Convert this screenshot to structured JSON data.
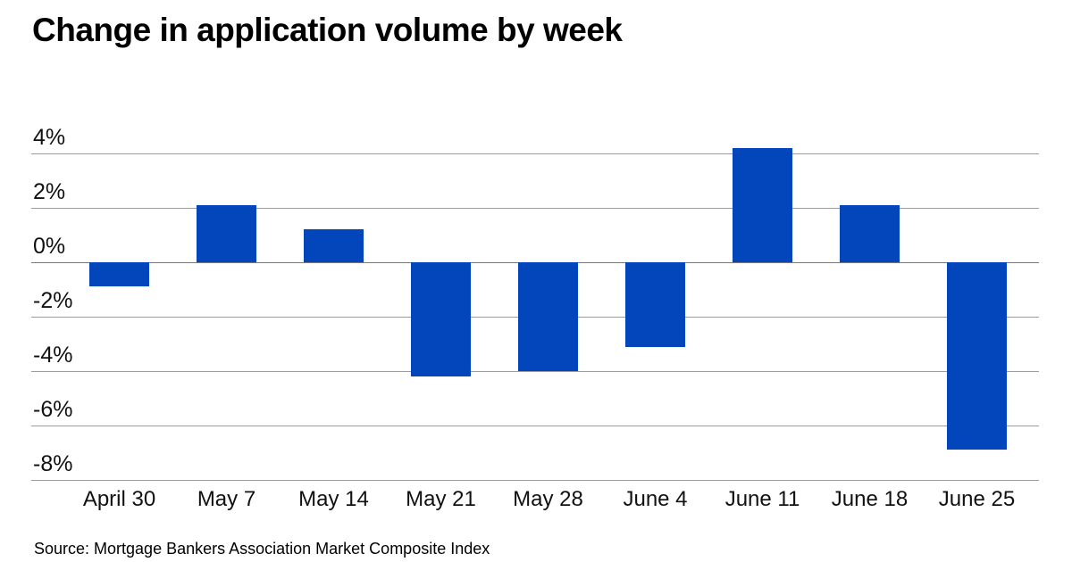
{
  "title": "Change in application volume by week",
  "source": "Source: Mortgage Bankers Association Market Composite Index",
  "colors": {
    "bar": "#0346bb",
    "gridline": "#9c9c9c",
    "zero_line": "#777777",
    "title_text": "#000000",
    "axis_text": "#111111",
    "background": "#ffffff"
  },
  "chart_data": {
    "type": "bar",
    "title": "Change in application volume by week",
    "categories": [
      "April 30",
      "May 7",
      "May 14",
      "May 21",
      "May 28",
      "June 4",
      "June 11",
      "June 18",
      "June 25"
    ],
    "values": [
      -0.9,
      2.1,
      1.2,
      -4.2,
      -4.0,
      -3.1,
      4.2,
      2.1,
      -6.9
    ],
    "xlabel": "",
    "ylabel": "",
    "unit": "%",
    "y_ticks": [
      {
        "value": 4,
        "label": "4%"
      },
      {
        "value": 2,
        "label": "2%"
      },
      {
        "value": 0,
        "label": "0%"
      },
      {
        "value": -2,
        "label": "-2%"
      },
      {
        "value": -4,
        "label": "-4%"
      },
      {
        "value": -6,
        "label": "-6%"
      },
      {
        "value": -8,
        "label": "-8%"
      }
    ],
    "ylim": [
      -8,
      4
    ],
    "grid": true,
    "legend": false
  }
}
